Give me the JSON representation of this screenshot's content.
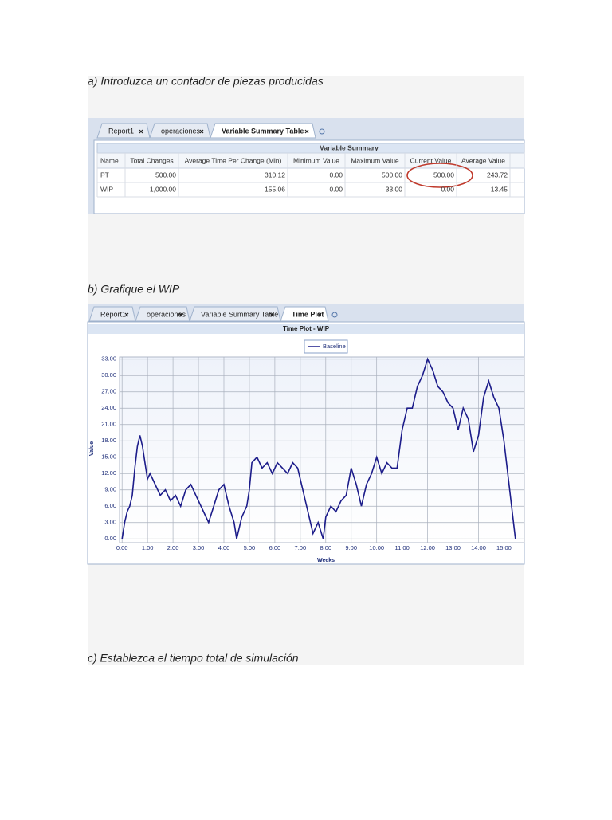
{
  "paragraphs": [
    "a) Introduzca un contador de piezas producidas",
    "b) Grafique el WIP",
    "c) Establezca el tiempo total de simulación"
  ],
  "screenshot1": {
    "tabs": [
      "Report1",
      "operaciones",
      "Variable Summary Table"
    ],
    "table": {
      "title": "Variable Summary",
      "columns": [
        "Name",
        "Total Changes",
        "Average Time Per Change (Min)",
        "Minimum Value",
        "Maximum Value",
        "Current Value",
        "Average Value"
      ],
      "rows": [
        [
          "PT",
          "500.00",
          "310.12",
          "0.00",
          "500.00",
          "500.00",
          "243.72"
        ],
        [
          "WIP",
          "1,000.00",
          "155.06",
          "0.00",
          "33.00",
          "0.00",
          "13.45"
        ]
      ]
    }
  },
  "screenshot2": {
    "tabs": [
      "Report1",
      "operaciones",
      "Variable Summary Table",
      "Time Plot"
    ]
  },
  "chart_data": {
    "type": "line",
    "title": "Time Plot - WIP",
    "x_label": "Weeks",
    "y_label": "Value",
    "x": [
      0,
      0.1,
      0.2,
      0.3,
      0.4,
      0.5,
      0.6,
      0.7,
      0.8,
      0.9,
      1.0,
      1.1,
      1.3,
      1.5,
      1.7,
      1.9,
      2.1,
      2.3,
      2.5,
      2.7,
      2.9,
      3.1,
      3.3,
      3.4,
      3.6,
      3.8,
      4.0,
      4.2,
      4.4,
      4.5,
      4.7,
      4.9,
      5.0,
      5.1,
      5.3,
      5.5,
      5.7,
      5.9,
      6.1,
      6.3,
      6.5,
      6.7,
      6.9,
      7.1,
      7.3,
      7.5,
      7.7,
      7.9,
      8.0,
      8.2,
      8.4,
      8.6,
      8.8,
      9.0,
      9.2,
      9.4,
      9.6,
      9.8,
      10.0,
      10.2,
      10.4,
      10.6,
      10.8,
      11.0,
      11.2,
      11.4,
      11.6,
      11.8,
      12.0,
      12.2,
      12.4,
      12.6,
      12.8,
      13.0,
      13.2,
      13.4,
      13.6,
      13.8,
      14.0,
      14.2,
      14.4,
      14.6,
      14.8,
      15.0,
      15.2,
      15.4,
      15.45
    ],
    "series": [
      {
        "name": "Baseline",
        "color": "#1c1c8a",
        "values": [
          0,
          3,
          5,
          6,
          8,
          13,
          17,
          19,
          17,
          14,
          11,
          12,
          10,
          8,
          9,
          7,
          8,
          6,
          9,
          10,
          8,
          6,
          4,
          3,
          6,
          9,
          10,
          6,
          3,
          0,
          4,
          6,
          9,
          14,
          15,
          13,
          14,
          12,
          14,
          13,
          12,
          14,
          13,
          9,
          5,
          1,
          3,
          0,
          4,
          6,
          5,
          7,
          8,
          13,
          10,
          6,
          10,
          12,
          15,
          12,
          14,
          13,
          13,
          20,
          24,
          24,
          28,
          30,
          33,
          31,
          28,
          27,
          25,
          24,
          20,
          24,
          22,
          16,
          19,
          26,
          29,
          26,
          24,
          18,
          10,
          2,
          0
        ]
      }
    ],
    "xlim": [
      -0.1,
      15.8
    ],
    "ylim": [
      -0.7,
      33.4
    ],
    "xticks": [
      {
        "value": 0,
        "label": "0.00"
      },
      {
        "value": 1,
        "label": "1.00"
      },
      {
        "value": 2,
        "label": "2.00"
      },
      {
        "value": 3,
        "label": "3.00"
      },
      {
        "value": 4,
        "label": "4.00"
      },
      {
        "value": 5,
        "label": "5.00"
      },
      {
        "value": 6,
        "label": "6.00"
      },
      {
        "value": 7,
        "label": "7.00"
      },
      {
        "value": 8,
        "label": "8.00"
      },
      {
        "value": 9,
        "label": "9.00"
      },
      {
        "value": 10,
        "label": "10.00"
      },
      {
        "value": 11,
        "label": "11.00"
      },
      {
        "value": 12,
        "label": "12.00"
      },
      {
        "value": 13,
        "label": "13.00"
      },
      {
        "value": 14,
        "label": "14.00"
      },
      {
        "value": 15,
        "label": "15.00"
      }
    ],
    "yticks": [
      {
        "value": 0,
        "label": "0.00"
      },
      {
        "value": 3,
        "label": "3.00"
      },
      {
        "value": 6,
        "label": "6.00"
      },
      {
        "value": 9,
        "label": "9.00"
      },
      {
        "value": 12,
        "label": "12.00"
      },
      {
        "value": 15,
        "label": "15.00"
      },
      {
        "value": 18,
        "label": "18.00"
      },
      {
        "value": 21,
        "label": "21.00"
      },
      {
        "value": 24,
        "label": "24.00"
      },
      {
        "value": 27,
        "label": "27.00"
      },
      {
        "value": 30,
        "label": "30.00"
      },
      {
        "value": 33,
        "label": "33.00"
      }
    ],
    "grid": true
  }
}
